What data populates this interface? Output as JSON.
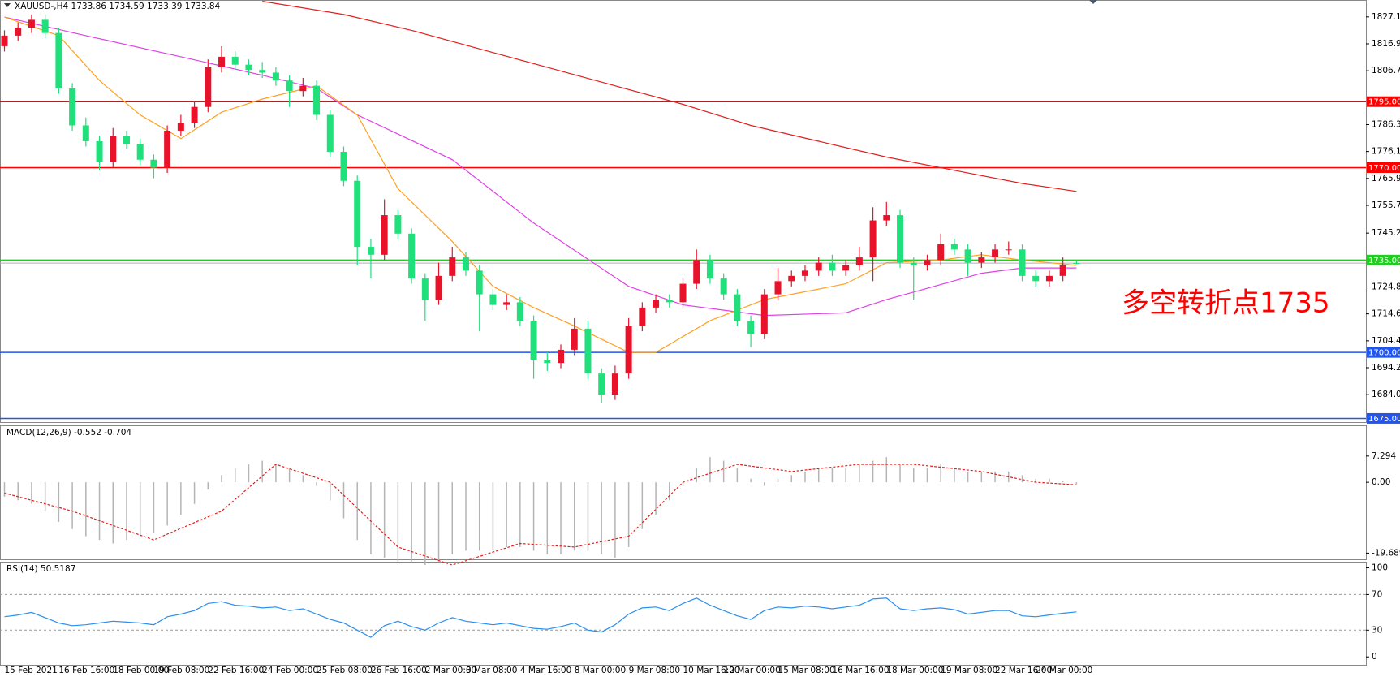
{
  "chart_data": [
    {
      "type": "candlestick",
      "title": "XAUUSD-,H4  1733.86 1734.59 1733.39 1733.84",
      "annotation": "多空转折点1735",
      "categories": [
        "15 Feb 2021",
        null,
        null,
        null,
        "16 Feb 16:00",
        null,
        null,
        null,
        "18 Feb 00:00",
        null,
        null,
        "19 Feb 08:00",
        null,
        null,
        null,
        "22 Feb 16:00",
        null,
        null,
        null,
        "24 Feb 00:00",
        null,
        null,
        null,
        "25 Feb 08:00",
        null,
        null,
        null,
        "26 Feb 16:00",
        null,
        null,
        null,
        "2 Mar 00:00",
        null,
        null,
        "3 Mar 08:00",
        null,
        null,
        null,
        "4 Mar 16:00",
        null,
        null,
        null,
        "8 Mar 00:00",
        null,
        null,
        null,
        "9 Mar 08:00",
        null,
        null,
        null,
        "10 Mar 16:00",
        null,
        null,
        "12 Mar 00:00",
        null,
        null,
        null,
        "15 Mar 08:00",
        null,
        null,
        null,
        "16 Mar 16:00",
        null,
        null,
        null,
        "18 Mar 00:00",
        null,
        null,
        null,
        "19 Mar 08:00",
        null,
        null,
        null,
        "22 Mar 16:00",
        null,
        null,
        "24 Mar 00:00",
        null,
        null,
        null
      ],
      "open": [
        1816,
        1820,
        1823,
        1826,
        1821,
        1800,
        1786,
        1780,
        1772,
        1782,
        1779,
        1773,
        1770,
        1784,
        1787,
        1793,
        1808,
        1812,
        1809,
        1807,
        1806,
        1803,
        1799,
        1801,
        1790,
        1776,
        1765,
        1740,
        1737,
        1752,
        1745,
        1728,
        1720,
        1729,
        1736,
        1731,
        1722,
        1718,
        1719,
        1712,
        1697,
        1696,
        1701,
        1709,
        1692,
        1684,
        1692,
        1710,
        1717,
        1720,
        1719,
        1726,
        1735,
        1728,
        1722,
        1712,
        1707,
        1722,
        1727,
        1729,
        1731,
        1734,
        1731,
        1733,
        1736,
        1750,
        1752,
        1734,
        1733,
        1735,
        1741,
        1739,
        1734,
        1736,
        1739,
        1739,
        1729,
        1727,
        1729,
        1733.86
      ],
      "high": [
        1822,
        1825,
        1828,
        1828,
        1823,
        1802,
        1789,
        1782,
        1785,
        1784,
        1781,
        1775,
        1786,
        1790,
        1795,
        1811,
        1816,
        1814,
        1811,
        1810,
        1808,
        1805,
        1804,
        1803,
        1792,
        1778,
        1767,
        1743,
        1758,
        1754,
        1747,
        1730,
        1734,
        1740,
        1738,
        1733,
        1724,
        1722,
        1721,
        1714,
        1700,
        1703,
        1713,
        1712,
        1694,
        1695,
        1713,
        1719,
        1722,
        1722,
        1728,
        1739,
        1737,
        1730,
        1724,
        1714,
        1724,
        1732,
        1731,
        1733,
        1736,
        1737,
        1735,
        1740,
        1755,
        1757,
        1754,
        1736,
        1737,
        1745,
        1743,
        1741,
        1738,
        1741,
        1742,
        1741,
        1731,
        1731,
        1736,
        1734.59
      ],
      "low": [
        1814,
        1818,
        1821,
        1819,
        1798,
        1784,
        1778,
        1769,
        1770,
        1777,
        1771,
        1766,
        1768,
        1782,
        1785,
        1791,
        1806,
        1807,
        1805,
        1804,
        1801,
        1793,
        1797,
        1788,
        1774,
        1763,
        1733,
        1728,
        1735,
        1743,
        1726,
        1712,
        1718,
        1727,
        1729,
        1708,
        1716,
        1716,
        1710,
        1690,
        1693,
        1694,
        1699,
        1690,
        1681,
        1682,
        1690,
        1708,
        1715,
        1717,
        1717,
        1724,
        1726,
        1720,
        1710,
        1702,
        1705,
        1720,
        1725,
        1727,
        1729,
        1729,
        1729,
        1731,
        1727,
        1748,
        1732,
        1720,
        1731,
        1733,
        1737,
        1729,
        1732,
        1734,
        1737,
        1727,
        1725,
        1725,
        1727,
        1733.39
      ],
      "close": [
        1820,
        1823,
        1826,
        1821,
        1800,
        1786,
        1780,
        1772,
        1782,
        1779,
        1773,
        1770,
        1784,
        1787,
        1793,
        1808,
        1812,
        1809,
        1807,
        1806,
        1803,
        1799,
        1801,
        1790,
        1776,
        1765,
        1740,
        1737,
        1752,
        1745,
        1728,
        1720,
        1729,
        1736,
        1731,
        1722,
        1718,
        1719,
        1712,
        1697,
        1696,
        1701,
        1709,
        1692,
        1684,
        1692,
        1710,
        1717,
        1720,
        1719,
        1726,
        1735,
        1728,
        1722,
        1712,
        1707,
        1722,
        1727,
        1729,
        1731,
        1734,
        1731,
        1733,
        1736,
        1750,
        1752,
        1734,
        1733,
        1735,
        1741,
        1739,
        1734,
        1736,
        1739,
        1739,
        1729,
        1727,
        1729,
        1733,
        1733.84
      ],
      "up_color": "#e8132b",
      "down_color": "#1fe07a",
      "series": [
        {
          "color": "#e0201e",
          "x": [
            19,
            25,
            30,
            35,
            40,
            45,
            50,
            55,
            60,
            65,
            70,
            75,
            79
          ],
          "values": [
            1833,
            1828,
            1822,
            1815,
            1808,
            1801,
            1794,
            1786,
            1780,
            1774,
            1769,
            1764,
            1761
          ]
        },
        {
          "color": "#e040e8",
          "x": [
            0,
            6,
            13,
            19,
            23,
            26,
            33,
            39,
            46,
            50,
            56,
            62,
            65,
            72,
            75,
            79
          ],
          "values": [
            1827,
            1820,
            1812,
            1805,
            1800,
            1790,
            1773,
            1749,
            1725,
            1718,
            1714,
            1715,
            1720,
            1730,
            1732,
            1732
          ]
        },
        {
          "color": "#ffa020",
          "x": [
            0,
            4,
            7,
            10,
            13,
            16,
            19,
            23,
            26,
            29,
            33,
            36,
            39,
            42,
            46,
            48,
            52,
            56,
            62,
            65,
            69,
            72,
            75,
            79
          ],
          "values": [
            1827,
            1820,
            1803,
            1790,
            1781,
            1791,
            1796,
            1801,
            1790,
            1762,
            1742,
            1725,
            1717,
            1710,
            1700,
            1700,
            1712,
            1720,
            1726,
            1734,
            1735,
            1737,
            1735,
            1733
          ]
        }
      ],
      "levels": [
        {
          "value": 1795,
          "label": "1795.00",
          "color": "#ff0000"
        },
        {
          "value": 1770,
          "label": "1770.00",
          "color": "#ff0000"
        },
        {
          "value": 1735,
          "label": "1735.00",
          "color": "#22cc22"
        },
        {
          "value": 1700,
          "label": "1700.00",
          "color": "#2255ee"
        },
        {
          "value": 1675,
          "label": "1675.00",
          "color": "#2255ee"
        }
      ],
      "last_price": 1733.84,
      "ylim": [
        1673.6,
        1833.5
      ],
      "yticks": [
        {
          "value": 1827.1,
          "label": "1827.10"
        },
        {
          "value": 1816.9,
          "label": "1816.90"
        },
        {
          "value": 1806.7,
          "label": "1806.70"
        },
        {
          "value": 1786.3,
          "label": "1786.30"
        },
        {
          "value": 1776.1,
          "label": "1776.10"
        },
        {
          "value": 1765.9,
          "label": "1765.90"
        },
        {
          "value": 1755.7,
          "label": "1755.70"
        },
        {
          "value": 1745.2,
          "label": "1745.20"
        },
        {
          "value": 1724.8,
          "label": "1724.80"
        },
        {
          "value": 1714.6,
          "label": "1714.60"
        },
        {
          "value": 1704.4,
          "label": "1704.40"
        },
        {
          "value": 1694.2,
          "label": "1694.20"
        },
        {
          "value": 1684,
          "label": "1684.00"
        }
      ]
    },
    {
      "type": "macd",
      "title": "MACD(12,26,9) -0.552 -0.704",
      "values": [
        -4,
        -5,
        -6,
        -8,
        -11,
        -13,
        -15,
        -16,
        -17,
        -16,
        -15,
        -14,
        -12,
        -9,
        -6,
        -2,
        2,
        4,
        5,
        6,
        5,
        4,
        2,
        -1,
        -5,
        -10,
        -16,
        -20,
        -21,
        -22,
        -22,
        -23,
        -22,
        -20,
        -19,
        -19,
        -19,
        -18,
        -18,
        -19,
        -20,
        -20,
        -19,
        -19,
        -20,
        -21,
        -18,
        -13,
        -9,
        -5,
        -1,
        4,
        7,
        6,
        4,
        1,
        -1,
        1,
        2,
        3,
        4,
        4,
        4,
        5,
        6,
        7,
        5,
        4,
        4,
        5,
        4,
        3,
        3,
        3,
        3,
        2,
        1,
        1,
        0.5,
        -0.552
      ],
      "color": "#b4b4b4",
      "signal": {
        "color": "#e0201e",
        "x": [
          0,
          5,
          11,
          16,
          20,
          24,
          29,
          33,
          38,
          42,
          46,
          50,
          54,
          58,
          63,
          67,
          72,
          76,
          79
        ],
        "values": [
          -3,
          -8,
          -16,
          -8,
          5,
          0,
          -18,
          -23,
          -17,
          -18,
          -15,
          0,
          5,
          3,
          5,
          5,
          3,
          0,
          -0.704
        ]
      },
      "ylim": [
        -21.4,
        15.6
      ],
      "yticks": [
        7.294,
        {
          "value": 0,
          "label": "0.00"
        },
        -19.689
      ]
    },
    {
      "type": "line",
      "title": "RSI(14) 50.5187",
      "values": [
        45,
        47,
        50,
        44,
        38,
        35,
        36,
        38,
        40,
        39,
        38,
        36,
        45,
        48,
        52,
        60,
        62,
        58,
        57,
        55,
        56,
        52,
        54,
        48,
        42,
        38,
        30,
        22,
        35,
        40,
        34,
        30,
        38,
        44,
        40,
        38,
        36,
        38,
        35,
        32,
        31,
        34,
        38,
        30,
        28,
        36,
        48,
        55,
        56,
        52,
        60,
        66,
        58,
        52,
        46,
        42,
        52,
        56,
        55,
        57,
        56,
        54,
        56,
        58,
        65,
        66,
        54,
        52,
        54,
        55,
        53,
        48,
        50,
        52,
        52,
        46,
        45,
        47,
        49,
        50.5187
      ],
      "color": "#2a8ff0",
      "levels": [
        70,
        30
      ],
      "ylim": [
        -8.9,
        105.9
      ],
      "yticks": [
        100,
        70,
        30,
        0
      ]
    }
  ]
}
